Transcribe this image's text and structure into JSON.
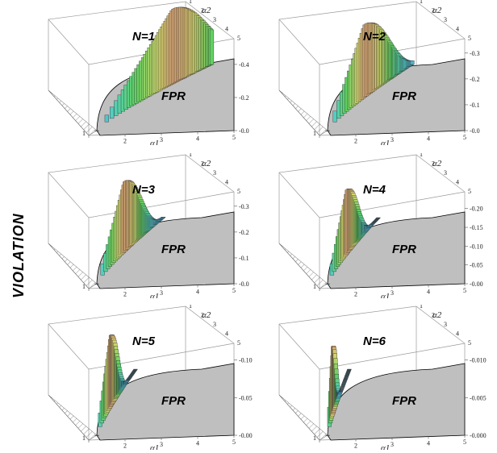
{
  "figure": {
    "ylabel": "VIOLATION"
  },
  "chart_data": [
    {
      "type": "surface3d",
      "title": "N=1",
      "region_label": "FPR",
      "xlabel": "α1",
      "ylabel": "α2",
      "x_ticks": [
        "1",
        "2",
        "3",
        "4",
        "5"
      ],
      "y_ticks": [
        "1",
        "2",
        "3",
        "4",
        "5"
      ],
      "z_ticks": [
        "0.0",
        "0.2",
        "0.4"
      ],
      "zlim": [
        0,
        0.5
      ],
      "peak": 0.45,
      "peak_position": 0.5,
      "width": 0.95
    },
    {
      "type": "surface3d",
      "title": "N=2",
      "region_label": "FPR",
      "xlabel": "α1",
      "ylabel": "α2",
      "x_ticks": [
        "1",
        "2",
        "3",
        "4",
        "5"
      ],
      "y_ticks": [
        "1",
        "2",
        "3",
        "4",
        "5"
      ],
      "z_ticks": [
        "0.0",
        "0.1",
        "0.2",
        "0.3"
      ],
      "zlim": [
        0,
        0.32
      ],
      "peak": 0.28,
      "peak_position": 0.25,
      "width": 0.7
    },
    {
      "type": "surface3d",
      "title": "N=3",
      "region_label": "FPR",
      "xlabel": "α1",
      "ylabel": "α2",
      "x_ticks": [
        "1",
        "2",
        "3",
        "4",
        "5"
      ],
      "y_ticks": [
        "1",
        "2",
        "3",
        "4",
        "5"
      ],
      "z_ticks": [
        "0.0",
        "0.1",
        "0.2",
        "0.3"
      ],
      "zlim": [
        0,
        0.32
      ],
      "peak": 0.27,
      "peak_position": 0.23,
      "width": 0.55
    },
    {
      "type": "surface3d",
      "title": "N=4",
      "region_label": "FPR",
      "xlabel": "α1",
      "ylabel": "α2",
      "x_ticks": [
        "1",
        "2",
        "3",
        "4",
        "5"
      ],
      "y_ticks": [
        "1",
        "2",
        "3",
        "4",
        "5"
      ],
      "z_ticks": [
        "0.00",
        "0.05",
        "0.10",
        "0.15",
        "0.20"
      ],
      "zlim": [
        0,
        0.22
      ],
      "peak": 0.17,
      "peak_position": 0.2,
      "width": 0.42
    },
    {
      "type": "surface3d",
      "title": "N=5",
      "region_label": "FPR",
      "xlabel": "α1",
      "ylabel": "α2",
      "x_ticks": [
        "1",
        "2",
        "3",
        "4",
        "5"
      ],
      "y_ticks": [
        "1",
        "2",
        "3",
        "4",
        "5"
      ],
      "z_ticks": [
        "0.00",
        "0.05",
        "0.10"
      ],
      "zlim": [
        0,
        0.11
      ],
      "peak": 0.095,
      "peak_position": 0.18,
      "width": 0.32
    },
    {
      "type": "surface3d",
      "title": "N=6",
      "region_label": "FPR",
      "xlabel": "α1",
      "ylabel": "α2",
      "x_ticks": [
        "1",
        "2",
        "3",
        "4",
        "5"
      ],
      "y_ticks": [
        "1",
        "2",
        "3",
        "4",
        "5"
      ],
      "z_ticks": [
        "0.000",
        "0.005",
        "0.010"
      ],
      "zlim": [
        0,
        0.011
      ],
      "peak": 0.009,
      "peak_position": 0.1,
      "width": 0.18
    }
  ]
}
